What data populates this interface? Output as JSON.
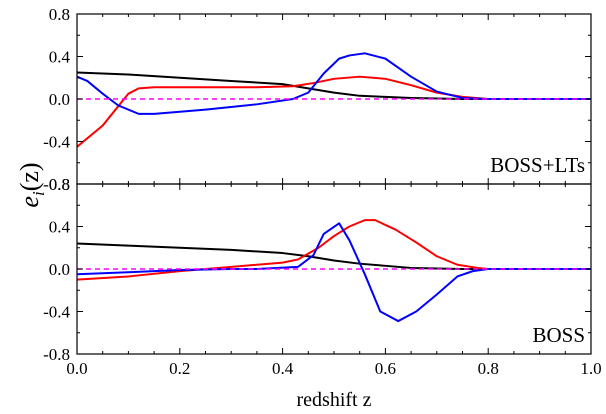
{
  "figure": {
    "ylabel_main": "e",
    "ylabel_sub": "i",
    "ylabel_arg": "(z)"
  },
  "chart_data": [
    {
      "type": "line",
      "panel_label": "BOSS+LTs",
      "xlabel": "",
      "ylabel": "e_i(z)",
      "xlim": [
        0,
        1
      ],
      "ylim": [
        -0.8,
        0.8
      ],
      "x_ticks": [
        "0.0",
        "0.2",
        "0.4",
        "0.6",
        "0.8",
        "1.0"
      ],
      "y_ticks": [
        "0.8",
        "0.4",
        "0.0",
        "-0.4",
        "-0.8"
      ],
      "grid": false,
      "series": [
        {
          "color": "#000000",
          "dashed": false,
          "points": [
            [
              0.0,
              0.25
            ],
            [
              0.1,
              0.23
            ],
            [
              0.2,
              0.2
            ],
            [
              0.3,
              0.17
            ],
            [
              0.4,
              0.14
            ],
            [
              0.5,
              0.06
            ],
            [
              0.55,
              0.03
            ],
            [
              0.6,
              0.02
            ],
            [
              0.65,
              0.01
            ],
            [
              0.7,
              0.005
            ],
            [
              0.75,
              0.0
            ],
            [
              1.0,
              0.0
            ]
          ]
        },
        {
          "color": "#ff0000",
          "dashed": false,
          "points": [
            [
              0.0,
              -0.45
            ],
            [
              0.05,
              -0.25
            ],
            [
              0.1,
              0.05
            ],
            [
              0.12,
              0.1
            ],
            [
              0.15,
              0.11
            ],
            [
              0.25,
              0.11
            ],
            [
              0.35,
              0.11
            ],
            [
              0.42,
              0.12
            ],
            [
              0.46,
              0.15
            ],
            [
              0.5,
              0.19
            ],
            [
              0.55,
              0.21
            ],
            [
              0.6,
              0.19
            ],
            [
              0.65,
              0.13
            ],
            [
              0.7,
              0.06
            ],
            [
              0.75,
              0.02
            ],
            [
              0.8,
              0.0
            ],
            [
              1.0,
              0.0
            ]
          ]
        },
        {
          "color": "#0000ff",
          "dashed": false,
          "points": [
            [
              0.0,
              0.21
            ],
            [
              0.02,
              0.17
            ],
            [
              0.05,
              0.05
            ],
            [
              0.08,
              -0.06
            ],
            [
              0.12,
              -0.14
            ],
            [
              0.15,
              -0.14
            ],
            [
              0.25,
              -0.1
            ],
            [
              0.35,
              -0.05
            ],
            [
              0.42,
              0.0
            ],
            [
              0.45,
              0.06
            ],
            [
              0.48,
              0.24
            ],
            [
              0.51,
              0.38
            ],
            [
              0.53,
              0.41
            ],
            [
              0.56,
              0.43
            ],
            [
              0.6,
              0.38
            ],
            [
              0.65,
              0.21
            ],
            [
              0.7,
              0.07
            ],
            [
              0.75,
              0.01
            ],
            [
              0.8,
              0.0
            ],
            [
              1.0,
              0.0
            ]
          ]
        },
        {
          "color": "#ff00ff",
          "dashed": true,
          "points": [
            [
              0.0,
              0.0
            ],
            [
              1.0,
              0.0
            ]
          ]
        }
      ]
    },
    {
      "type": "line",
      "panel_label": "BOSS",
      "xlabel": "redshift z",
      "ylabel": "e_i(z)",
      "xlim": [
        0,
        1
      ],
      "ylim": [
        -0.8,
        0.8
      ],
      "x_ticks": [
        "0.0",
        "0.2",
        "0.4",
        "0.6",
        "0.8",
        "1.0"
      ],
      "y_ticks": [
        "0.8",
        "0.4",
        "0.0",
        "-0.4",
        "-0.8"
      ],
      "grid": false,
      "series": [
        {
          "color": "#000000",
          "dashed": false,
          "points": [
            [
              0.0,
              0.24
            ],
            [
              0.1,
              0.22
            ],
            [
              0.2,
              0.2
            ],
            [
              0.3,
              0.18
            ],
            [
              0.4,
              0.15
            ],
            [
              0.45,
              0.12
            ],
            [
              0.5,
              0.08
            ],
            [
              0.55,
              0.05
            ],
            [
              0.6,
              0.03
            ],
            [
              0.65,
              0.01
            ],
            [
              0.7,
              0.005
            ],
            [
              0.75,
              0.0
            ],
            [
              1.0,
              0.0
            ]
          ]
        },
        {
          "color": "#ff0000",
          "dashed": false,
          "points": [
            [
              0.0,
              -0.1
            ],
            [
              0.1,
              -0.07
            ],
            [
              0.2,
              -0.02
            ],
            [
              0.3,
              0.02
            ],
            [
              0.4,
              0.06
            ],
            [
              0.43,
              0.09
            ],
            [
              0.47,
              0.2
            ],
            [
              0.5,
              0.31
            ],
            [
              0.53,
              0.4
            ],
            [
              0.56,
              0.46
            ],
            [
              0.58,
              0.46
            ],
            [
              0.62,
              0.37
            ],
            [
              0.66,
              0.25
            ],
            [
              0.7,
              0.12
            ],
            [
              0.74,
              0.04
            ],
            [
              0.78,
              0.01
            ],
            [
              0.8,
              0.0
            ],
            [
              1.0,
              0.0
            ]
          ]
        },
        {
          "color": "#0000ff",
          "dashed": false,
          "points": [
            [
              0.0,
              -0.05
            ],
            [
              0.1,
              -0.03
            ],
            [
              0.2,
              -0.01
            ],
            [
              0.3,
              0.0
            ],
            [
              0.35,
              0.0
            ],
            [
              0.43,
              0.02
            ],
            [
              0.46,
              0.13
            ],
            [
              0.48,
              0.33
            ],
            [
              0.51,
              0.43
            ],
            [
              0.53,
              0.27
            ],
            [
              0.56,
              -0.05
            ],
            [
              0.59,
              -0.4
            ],
            [
              0.625,
              -0.49
            ],
            [
              0.66,
              -0.4
            ],
            [
              0.7,
              -0.24
            ],
            [
              0.74,
              -0.07
            ],
            [
              0.77,
              -0.02
            ],
            [
              0.8,
              0.0
            ],
            [
              1.0,
              0.0
            ]
          ]
        },
        {
          "color": "#ff00ff",
          "dashed": true,
          "points": [
            [
              0.0,
              0.0
            ],
            [
              1.0,
              0.0
            ]
          ]
        }
      ]
    }
  ]
}
